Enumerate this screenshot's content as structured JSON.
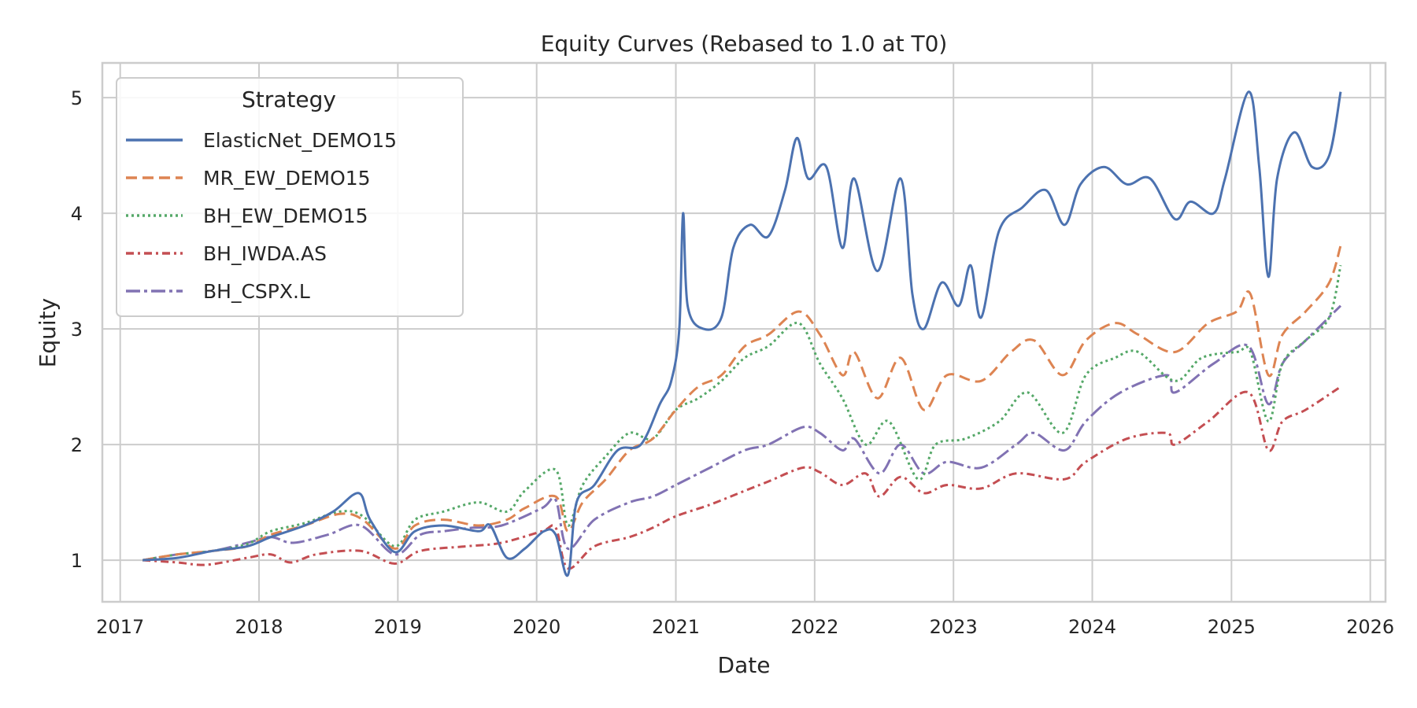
{
  "chart_data": {
    "type": "line",
    "title": "Equity Curves (Rebased to 1.0 at T0)",
    "xlabel": "Date",
    "ylabel": "Equity",
    "xlim": [
      "2016-11-15",
      "2026-02-10"
    ],
    "ylim": [
      0.64,
      5.3
    ],
    "x_ticks": [
      "2017",
      "2018",
      "2019",
      "2020",
      "2021",
      "2022",
      "2023",
      "2024",
      "2025",
      "2026"
    ],
    "y_ticks": [
      1,
      2,
      3,
      4,
      5
    ],
    "grid": true,
    "legend": {
      "title": "Strategy",
      "placement": "top-left"
    },
    "series": [
      {
        "name": "ElasticNet_DEMO15",
        "color": "#4c72b0",
        "dash": "solid",
        "points": [
          [
            "2017-03-01",
            1.0
          ],
          [
            "2017-06-01",
            1.02
          ],
          [
            "2017-09-01",
            1.08
          ],
          [
            "2017-12-01",
            1.12
          ],
          [
            "2018-02-01",
            1.2
          ],
          [
            "2018-05-01",
            1.3
          ],
          [
            "2018-07-15",
            1.42
          ],
          [
            "2018-09-20",
            1.58
          ],
          [
            "2018-10-20",
            1.35
          ],
          [
            "2018-12-24",
            1.07
          ],
          [
            "2019-02-15",
            1.25
          ],
          [
            "2019-05-01",
            1.3
          ],
          [
            "2019-08-01",
            1.25
          ],
          [
            "2019-09-01",
            1.3
          ],
          [
            "2019-10-15",
            1.02
          ],
          [
            "2019-12-01",
            1.1
          ],
          [
            "2020-01-20",
            1.25
          ],
          [
            "2020-02-20",
            1.22
          ],
          [
            "2020-03-23",
            0.87
          ],
          [
            "2020-04-15",
            1.5
          ],
          [
            "2020-06-01",
            1.65
          ],
          [
            "2020-08-01",
            1.95
          ],
          [
            "2020-10-01",
            2.0
          ],
          [
            "2020-11-20",
            2.35
          ],
          [
            "2020-12-20",
            2.55
          ],
          [
            "2021-01-10",
            3.0
          ],
          [
            "2021-01-20",
            4.0
          ],
          [
            "2021-02-01",
            3.2
          ],
          [
            "2021-03-15",
            3.0
          ],
          [
            "2021-05-01",
            3.1
          ],
          [
            "2021-06-01",
            3.7
          ],
          [
            "2021-07-15",
            3.9
          ],
          [
            "2021-09-01",
            3.8
          ],
          [
            "2021-10-15",
            4.2
          ],
          [
            "2021-11-15",
            4.65
          ],
          [
            "2021-12-15",
            4.3
          ],
          [
            "2022-02-01",
            4.4
          ],
          [
            "2022-03-15",
            3.7
          ],
          [
            "2022-04-15",
            4.3
          ],
          [
            "2022-06-15",
            3.5
          ],
          [
            "2022-08-15",
            4.3
          ],
          [
            "2022-09-15",
            3.3
          ],
          [
            "2022-10-15",
            3.0
          ],
          [
            "2022-12-01",
            3.4
          ],
          [
            "2023-01-15",
            3.2
          ],
          [
            "2023-02-15",
            3.55
          ],
          [
            "2023-03-15",
            3.1
          ],
          [
            "2023-05-01",
            3.85
          ],
          [
            "2023-07-01",
            4.05
          ],
          [
            "2023-09-01",
            4.2
          ],
          [
            "2023-10-20",
            3.9
          ],
          [
            "2023-12-01",
            4.25
          ],
          [
            "2024-02-01",
            4.4
          ],
          [
            "2024-04-01",
            4.25
          ],
          [
            "2024-06-01",
            4.3
          ],
          [
            "2024-08-05",
            3.95
          ],
          [
            "2024-09-15",
            4.1
          ],
          [
            "2024-11-15",
            4.0
          ],
          [
            "2024-12-15",
            4.3
          ],
          [
            "2025-02-15",
            5.05
          ],
          [
            "2025-03-15",
            4.4
          ],
          [
            "2025-04-08",
            3.45
          ],
          [
            "2025-05-01",
            4.3
          ],
          [
            "2025-06-15",
            4.7
          ],
          [
            "2025-08-01",
            4.4
          ],
          [
            "2025-09-15",
            4.5
          ],
          [
            "2025-10-15",
            5.05
          ]
        ]
      },
      {
        "name": "MR_EW_DEMO15",
        "color": "#dd8452",
        "dash": "dashed",
        "points": [
          [
            "2017-03-01",
            1.0
          ],
          [
            "2017-06-01",
            1.05
          ],
          [
            "2017-09-01",
            1.08
          ],
          [
            "2017-12-01",
            1.12
          ],
          [
            "2018-02-01",
            1.22
          ],
          [
            "2018-05-01",
            1.3
          ],
          [
            "2018-08-01",
            1.4
          ],
          [
            "2018-10-01",
            1.35
          ],
          [
            "2018-12-24",
            1.1
          ],
          [
            "2019-02-15",
            1.3
          ],
          [
            "2019-05-01",
            1.35
          ],
          [
            "2019-08-01",
            1.3
          ],
          [
            "2019-10-15",
            1.35
          ],
          [
            "2019-12-01",
            1.45
          ],
          [
            "2020-02-20",
            1.55
          ],
          [
            "2020-03-23",
            1.25
          ],
          [
            "2020-05-01",
            1.5
          ],
          [
            "2020-07-01",
            1.7
          ],
          [
            "2020-09-01",
            1.95
          ],
          [
            "2020-11-01",
            2.05
          ],
          [
            "2021-01-01",
            2.3
          ],
          [
            "2021-03-01",
            2.5
          ],
          [
            "2021-05-01",
            2.6
          ],
          [
            "2021-07-01",
            2.85
          ],
          [
            "2021-09-01",
            2.95
          ],
          [
            "2021-11-20",
            3.15
          ],
          [
            "2022-01-15",
            2.95
          ],
          [
            "2022-03-15",
            2.6
          ],
          [
            "2022-04-15",
            2.8
          ],
          [
            "2022-06-15",
            2.4
          ],
          [
            "2022-08-15",
            2.75
          ],
          [
            "2022-10-15",
            2.3
          ],
          [
            "2022-12-15",
            2.6
          ],
          [
            "2023-03-15",
            2.55
          ],
          [
            "2023-06-01",
            2.8
          ],
          [
            "2023-08-01",
            2.9
          ],
          [
            "2023-10-15",
            2.6
          ],
          [
            "2023-12-15",
            2.9
          ],
          [
            "2024-03-01",
            3.05
          ],
          [
            "2024-05-01",
            2.95
          ],
          [
            "2024-08-05",
            2.8
          ],
          [
            "2024-11-01",
            3.05
          ],
          [
            "2025-01-15",
            3.15
          ],
          [
            "2025-02-20",
            3.3
          ],
          [
            "2025-04-08",
            2.6
          ],
          [
            "2025-05-15",
            2.95
          ],
          [
            "2025-07-15",
            3.15
          ],
          [
            "2025-09-15",
            3.4
          ],
          [
            "2025-10-15",
            3.72
          ]
        ]
      },
      {
        "name": "BH_EW_DEMO15",
        "color": "#55a868",
        "dash": "dotted",
        "points": [
          [
            "2017-03-01",
            1.0
          ],
          [
            "2017-06-01",
            1.05
          ],
          [
            "2017-09-01",
            1.08
          ],
          [
            "2017-12-01",
            1.14
          ],
          [
            "2018-02-01",
            1.25
          ],
          [
            "2018-05-01",
            1.32
          ],
          [
            "2018-08-01",
            1.42
          ],
          [
            "2018-10-01",
            1.38
          ],
          [
            "2018-12-24",
            1.12
          ],
          [
            "2019-02-15",
            1.35
          ],
          [
            "2019-05-01",
            1.42
          ],
          [
            "2019-08-01",
            1.5
          ],
          [
            "2019-10-15",
            1.42
          ],
          [
            "2019-12-01",
            1.6
          ],
          [
            "2020-02-20",
            1.78
          ],
          [
            "2020-03-23",
            1.3
          ],
          [
            "2020-05-01",
            1.65
          ],
          [
            "2020-07-01",
            1.9
          ],
          [
            "2020-09-01",
            2.1
          ],
          [
            "2020-11-01",
            2.05
          ],
          [
            "2021-01-01",
            2.3
          ],
          [
            "2021-03-01",
            2.4
          ],
          [
            "2021-05-01",
            2.55
          ],
          [
            "2021-07-01",
            2.75
          ],
          [
            "2021-09-01",
            2.85
          ],
          [
            "2021-11-20",
            3.05
          ],
          [
            "2022-01-15",
            2.7
          ],
          [
            "2022-03-15",
            2.4
          ],
          [
            "2022-05-15",
            2.0
          ],
          [
            "2022-07-15",
            2.2
          ],
          [
            "2022-09-30",
            1.7
          ],
          [
            "2022-11-15",
            2.0
          ],
          [
            "2023-02-01",
            2.05
          ],
          [
            "2023-05-01",
            2.2
          ],
          [
            "2023-07-15",
            2.45
          ],
          [
            "2023-10-15",
            2.1
          ],
          [
            "2023-12-15",
            2.6
          ],
          [
            "2024-03-01",
            2.75
          ],
          [
            "2024-05-01",
            2.8
          ],
          [
            "2024-08-05",
            2.55
          ],
          [
            "2024-10-15",
            2.75
          ],
          [
            "2025-01-15",
            2.8
          ],
          [
            "2025-02-20",
            2.8
          ],
          [
            "2025-04-08",
            2.2
          ],
          [
            "2025-05-15",
            2.7
          ],
          [
            "2025-07-15",
            2.9
          ],
          [
            "2025-09-15",
            3.1
          ],
          [
            "2025-10-15",
            3.55
          ]
        ]
      },
      {
        "name": "BH_IWDA.AS",
        "color": "#c44e52",
        "dash": "dashdot",
        "points": [
          [
            "2017-03-01",
            1.0
          ],
          [
            "2017-06-01",
            0.98
          ],
          [
            "2017-08-15",
            0.96
          ],
          [
            "2017-12-01",
            1.02
          ],
          [
            "2018-02-01",
            1.05
          ],
          [
            "2018-03-25",
            0.98
          ],
          [
            "2018-06-01",
            1.05
          ],
          [
            "2018-09-25",
            1.08
          ],
          [
            "2018-12-24",
            0.97
          ],
          [
            "2019-03-01",
            1.08
          ],
          [
            "2019-07-01",
            1.12
          ],
          [
            "2019-10-01",
            1.15
          ],
          [
            "2020-01-15",
            1.25
          ],
          [
            "2020-02-20",
            1.28
          ],
          [
            "2020-03-23",
            0.93
          ],
          [
            "2020-06-01",
            1.12
          ],
          [
            "2020-09-01",
            1.2
          ],
          [
            "2020-11-01",
            1.28
          ],
          [
            "2021-01-01",
            1.38
          ],
          [
            "2021-04-01",
            1.48
          ],
          [
            "2021-07-01",
            1.6
          ],
          [
            "2021-09-01",
            1.68
          ],
          [
            "2021-12-01",
            1.8
          ],
          [
            "2022-01-15",
            1.76
          ],
          [
            "2022-03-15",
            1.65
          ],
          [
            "2022-05-15",
            1.75
          ],
          [
            "2022-06-20",
            1.55
          ],
          [
            "2022-08-15",
            1.72
          ],
          [
            "2022-10-15",
            1.58
          ],
          [
            "2022-12-15",
            1.65
          ],
          [
            "2023-03-15",
            1.62
          ],
          [
            "2023-06-15",
            1.75
          ],
          [
            "2023-10-20",
            1.7
          ],
          [
            "2023-12-15",
            1.85
          ],
          [
            "2024-04-01",
            2.05
          ],
          [
            "2024-07-15",
            2.1
          ],
          [
            "2024-08-05",
            2.0
          ],
          [
            "2024-11-01",
            2.2
          ],
          [
            "2025-02-15",
            2.45
          ],
          [
            "2025-04-08",
            1.95
          ],
          [
            "2025-05-15",
            2.2
          ],
          [
            "2025-07-15",
            2.3
          ],
          [
            "2025-10-15",
            2.5
          ]
        ]
      },
      {
        "name": "BH_CSPX.L",
        "color": "#8172b3",
        "dash": "longdashdot",
        "points": [
          [
            "2017-03-01",
            1.0
          ],
          [
            "2017-06-01",
            1.05
          ],
          [
            "2017-09-01",
            1.08
          ],
          [
            "2017-12-01",
            1.15
          ],
          [
            "2018-02-01",
            1.2
          ],
          [
            "2018-04-01",
            1.15
          ],
          [
            "2018-07-01",
            1.22
          ],
          [
            "2018-09-25",
            1.3
          ],
          [
            "2018-12-24",
            1.05
          ],
          [
            "2019-03-01",
            1.22
          ],
          [
            "2019-05-01",
            1.25
          ],
          [
            "2019-07-15",
            1.28
          ],
          [
            "2019-10-01",
            1.3
          ],
          [
            "2020-01-15",
            1.45
          ],
          [
            "2020-02-20",
            1.52
          ],
          [
            "2020-03-23",
            1.1
          ],
          [
            "2020-06-01",
            1.35
          ],
          [
            "2020-09-01",
            1.5
          ],
          [
            "2020-11-01",
            1.55
          ],
          [
            "2021-01-01",
            1.65
          ],
          [
            "2021-04-01",
            1.8
          ],
          [
            "2021-07-01",
            1.95
          ],
          [
            "2021-09-01",
            2.0
          ],
          [
            "2021-12-01",
            2.15
          ],
          [
            "2022-01-15",
            2.1
          ],
          [
            "2022-03-15",
            1.95
          ],
          [
            "2022-04-15",
            2.05
          ],
          [
            "2022-06-20",
            1.75
          ],
          [
            "2022-08-15",
            2.0
          ],
          [
            "2022-10-15",
            1.75
          ],
          [
            "2022-12-15",
            1.85
          ],
          [
            "2023-03-15",
            1.8
          ],
          [
            "2023-06-15",
            2.0
          ],
          [
            "2023-08-01",
            2.1
          ],
          [
            "2023-10-20",
            1.95
          ],
          [
            "2023-12-15",
            2.2
          ],
          [
            "2024-03-15",
            2.45
          ],
          [
            "2024-07-15",
            2.6
          ],
          [
            "2024-08-05",
            2.45
          ],
          [
            "2024-11-15",
            2.7
          ],
          [
            "2025-02-15",
            2.85
          ],
          [
            "2025-04-08",
            2.35
          ],
          [
            "2025-05-15",
            2.7
          ],
          [
            "2025-07-15",
            2.9
          ],
          [
            "2025-10-15",
            3.2
          ]
        ]
      }
    ]
  }
}
